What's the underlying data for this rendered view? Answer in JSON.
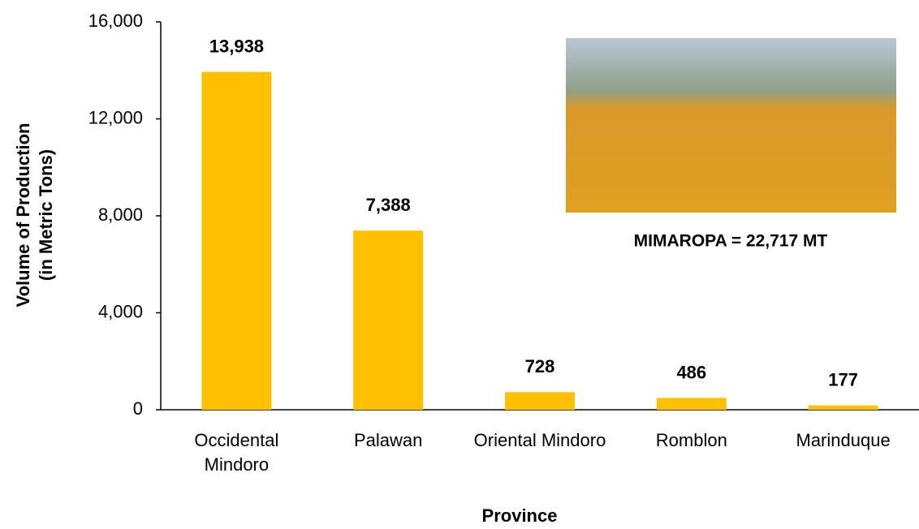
{
  "chart_data": {
    "type": "bar",
    "categories": [
      "Occidental Mindoro",
      "Palawan",
      "Oriental Mindoro",
      "Romblon",
      "Marinduque"
    ],
    "values": [
      13938,
      7388,
      728,
      486,
      177
    ],
    "value_labels": [
      "13,938",
      "7,388",
      "728",
      "486",
      "177"
    ],
    "color": "#ffc000",
    "ylim": [
      0,
      16000
    ],
    "yticks": [
      0,
      {
        "value": 4000,
        "label": "4,000"
      },
      {
        "value": 8000,
        "label": "8,000"
      },
      {
        "value": 12000,
        "label": "12,000"
      },
      {
        "value": 16000,
        "label": "16,000"
      }
    ],
    "y_label": [
      "Volume of Production",
      "(in Metric Tons)"
    ],
    "x_label": "Province",
    "annotation": "MIMAROPA = 22,717 MT"
  }
}
